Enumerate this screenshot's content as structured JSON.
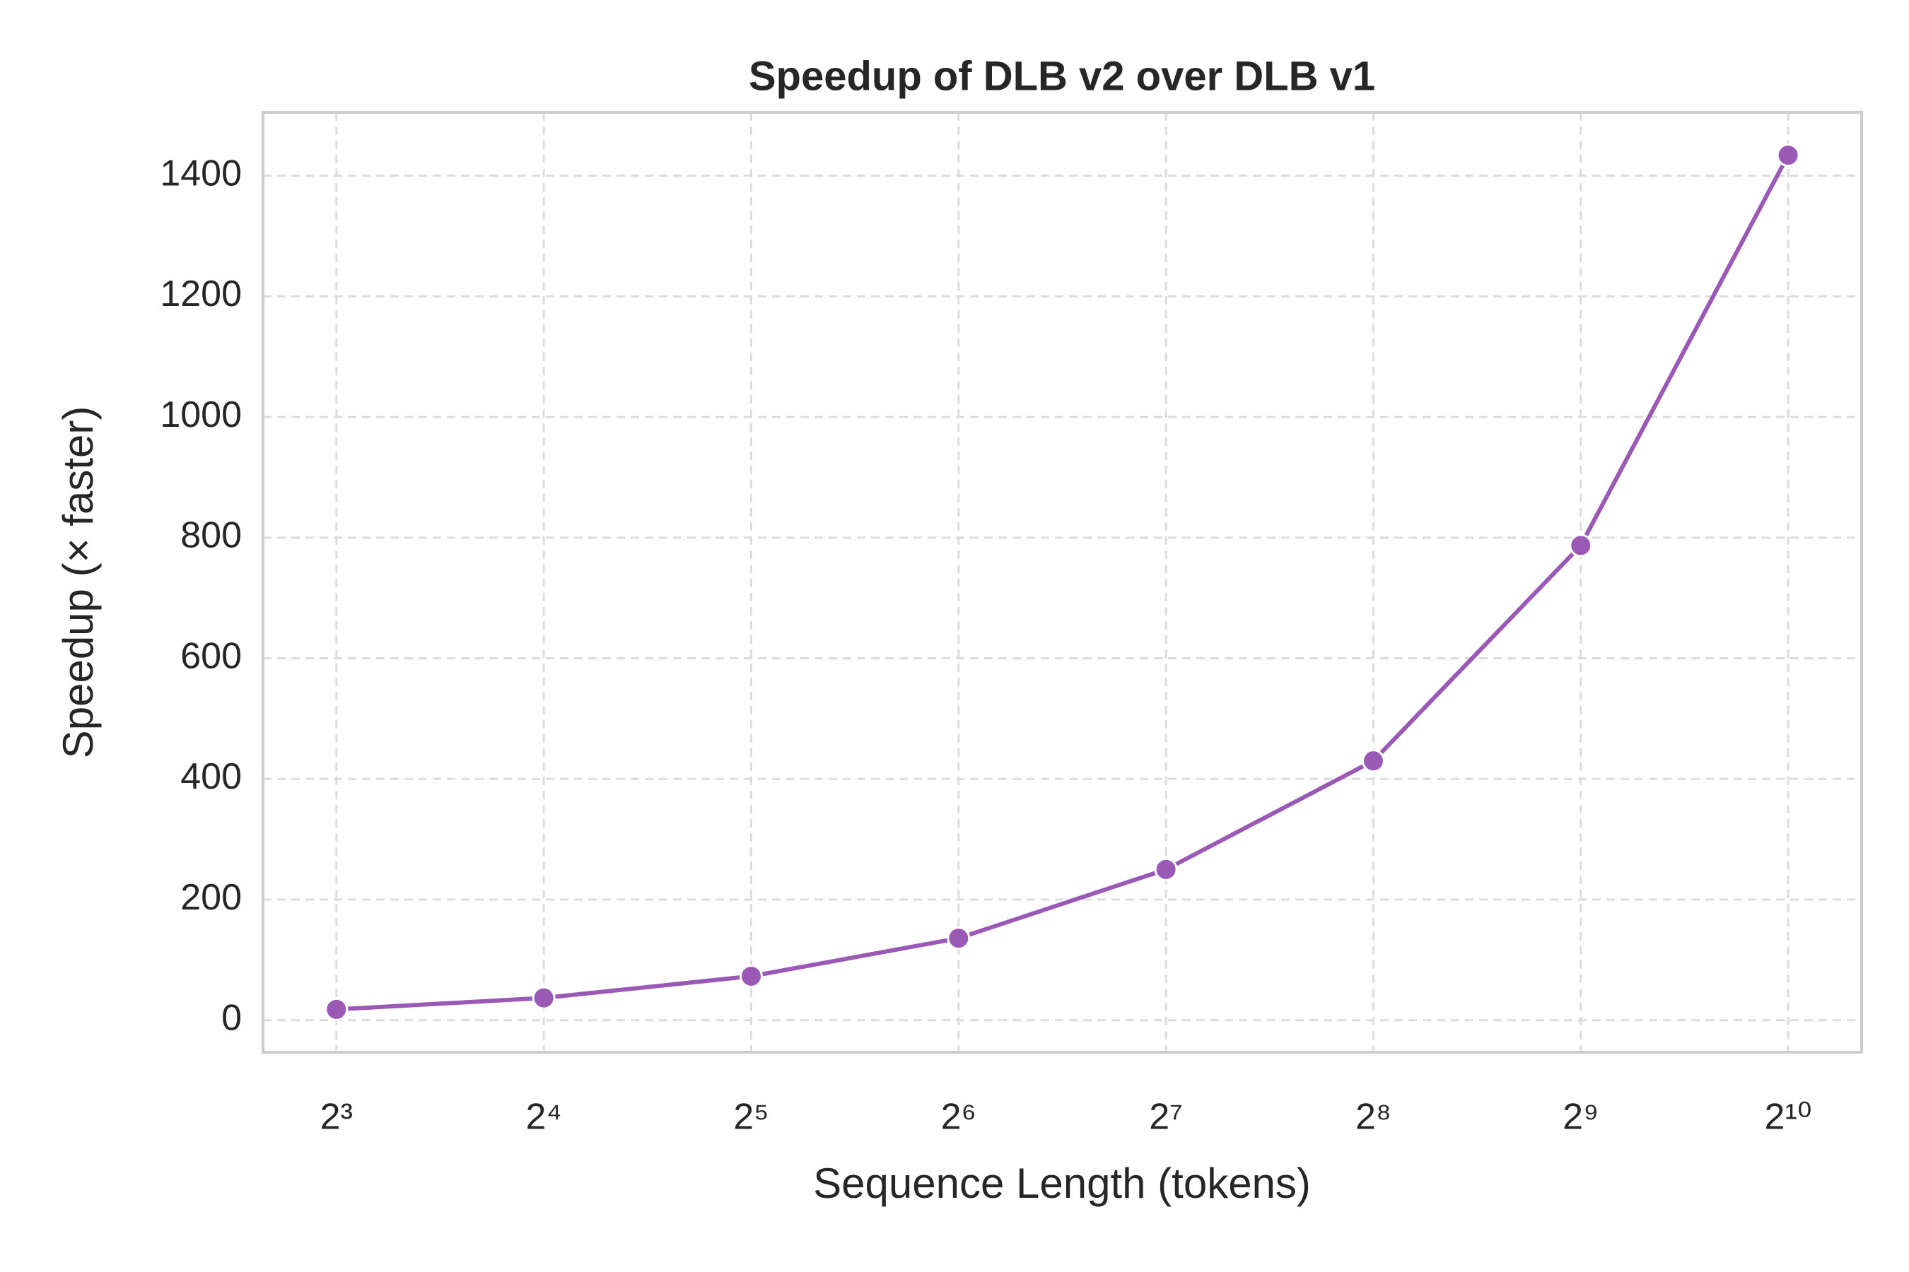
{
  "chart_data": {
    "type": "line",
    "title": "Speedup of DLB v2 over DLB v1",
    "x_label": "Sequence Length (tokens)",
    "y_label": "Speedup (× faster)",
    "x": [
      8,
      16,
      32,
      64,
      128,
      256,
      512,
      1024
    ],
    "series": [
      {
        "name": "Speedup",
        "color": "#9b59b6",
        "values": [
          18,
          37,
          73,
          136,
          250,
          430,
          787,
          1434
        ]
      }
    ],
    "xscale": "log2",
    "xlim": [
      6.26,
      1309
    ],
    "xticks": [
      {
        "value": 8,
        "label": "2³"
      },
      {
        "value": 16,
        "label": "2⁴"
      },
      {
        "value": 32,
        "label": "2⁵"
      },
      {
        "value": 64,
        "label": "2⁶"
      },
      {
        "value": 128,
        "label": "2⁷"
      },
      {
        "value": 256,
        "label": "2⁸"
      },
      {
        "value": 512,
        "label": "2⁹"
      },
      {
        "value": 1024,
        "label": "2¹⁰"
      }
    ],
    "ylim": [
      -53,
      1505
    ],
    "yticks": [
      0,
      200,
      400,
      600,
      800,
      1000,
      1200,
      1400
    ],
    "grid": true
  }
}
